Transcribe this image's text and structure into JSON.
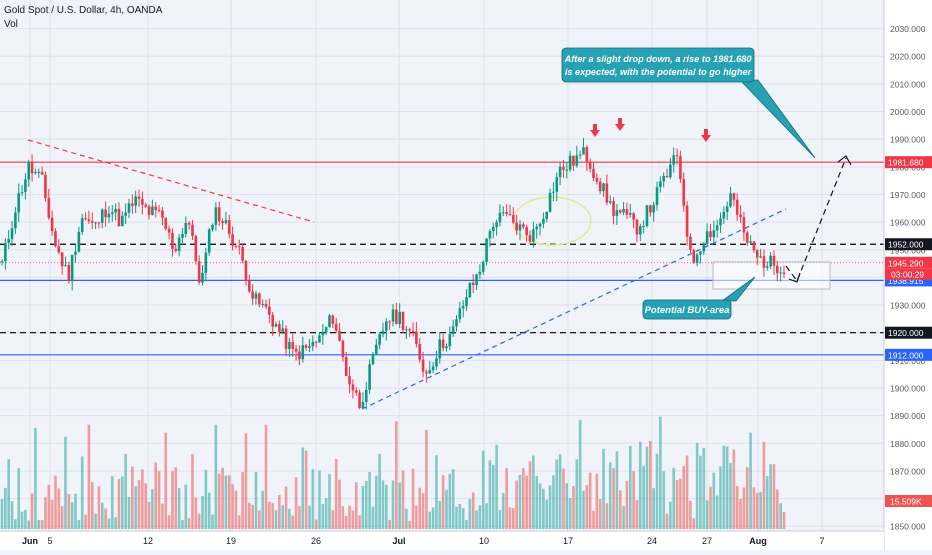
{
  "header": {
    "symbol_title": "Gold Spot / U.S. Dollar, 4h, OANDA",
    "volume_label": "Vol"
  },
  "chart_data": {
    "type": "candlestick",
    "y_axis_ticks": [
      1850,
      1860,
      1870,
      1880,
      1890,
      1900,
      1910,
      1920,
      1930,
      1940,
      1950,
      1960,
      1970,
      1980,
      1990,
      2000,
      2010,
      2020,
      2030
    ],
    "y_axis_tick_labels": [
      "1850.000",
      "1860.000",
      "1870.000",
      "1880.000",
      "1890.000",
      "1900.000",
      "1910.000",
      "1920.000",
      "1930.000",
      "1940.000",
      "1950.000",
      "1960.000",
      "1970.000",
      "1980.000",
      "1990.000",
      "2000.000",
      "2010.000",
      "2020.000",
      "2030.000"
    ],
    "ylim": [
      1849,
      2036
    ],
    "x_axis_labels": [
      "Jun",
      "5",
      "12",
      "19",
      "26",
      "Jul",
      "10",
      "17",
      "24",
      "27",
      "Aug",
      "7"
    ],
    "price_path": [
      [
        "May 29",
        1945
      ],
      [
        "May 31",
        1965
      ],
      [
        "Jun 1",
        1980
      ],
      [
        "Jun 2",
        1975
      ],
      [
        "Jun 3",
        1952
      ],
      [
        "Jun 5",
        1940
      ],
      [
        "Jun 6",
        1962
      ],
      [
        "Jun 8",
        1958
      ],
      [
        "Jun 9",
        1966
      ],
      [
        "Jun 11",
        1960
      ],
      [
        "Jun 12",
        1968
      ],
      [
        "Jun 14",
        1964
      ],
      [
        "Jun 15",
        1962
      ],
      [
        "Jun 16",
        1950
      ],
      [
        "Jun 17",
        1962
      ],
      [
        "Jun 19",
        1937
      ],
      [
        "Jun 20",
        1965
      ],
      [
        "Jun 22",
        1958
      ],
      [
        "Jun 23",
        1948
      ],
      [
        "Jun 24",
        1932
      ],
      [
        "Jun 25",
        1928
      ],
      [
        "Jun 26",
        1920
      ],
      [
        "Jun 27",
        1912
      ],
      [
        "Jun 28",
        1914
      ],
      [
        "Jun 29",
        1918
      ],
      [
        "Jun 30",
        1926
      ],
      [
        "Jul 1",
        1905
      ],
      [
        "Jul 2",
        1894
      ],
      [
        "Jul 3",
        1910
      ],
      [
        "Jul 4",
        1925
      ],
      [
        "Jul 5",
        1926
      ],
      [
        "Jul 6",
        1918
      ],
      [
        "Jul 7",
        1905
      ],
      [
        "Jul 8",
        1915
      ],
      [
        "Jul 9",
        1920
      ],
      [
        "Jul 10",
        1933
      ],
      [
        "Jul 11",
        1942
      ],
      [
        "Jul 12",
        1960
      ],
      [
        "Jul 13",
        1962
      ],
      [
        "Jul 14",
        1958
      ],
      [
        "Jul 15",
        1955
      ],
      [
        "Jul 16",
        1965
      ],
      [
        "Jul 17",
        1978
      ],
      [
        "Jul 18",
        1982
      ],
      [
        "Jul 19",
        1985
      ],
      [
        "Jul 20",
        1975
      ],
      [
        "Jul 21",
        1965
      ],
      [
        "Jul 22",
        1962
      ],
      [
        "Jul 23",
        1958
      ],
      [
        "Jul 24",
        1966
      ],
      [
        "Jul 25",
        1976
      ],
      [
        "Jul 26",
        1984
      ],
      [
        "Jul 27",
        1945
      ],
      [
        "Jul 28",
        1955
      ],
      [
        "Jul 29",
        1959
      ],
      [
        "Jul 30",
        1970
      ],
      [
        "Jul 31",
        1955
      ],
      [
        "Aug 1",
        1947
      ],
      [
        "Aug 2",
        1945
      ],
      [
        "Aug 3",
        1944
      ]
    ],
    "volume_value_label": "15.509K",
    "levels": [
      {
        "value": 1981.68,
        "label": "1981.680",
        "color": "#f23645",
        "style": "solid"
      },
      {
        "value": 1952.0,
        "label": "1952.000",
        "color": "#000000",
        "style": "dashed"
      },
      {
        "value": 1945.29,
        "label": "1945.290",
        "color": "#f23645",
        "style": "dotted"
      },
      {
        "value": 1938.915,
        "label": "1938.915",
        "color": "#2962ff",
        "style": "solid"
      },
      {
        "value": 1920.0,
        "label": "1920.000",
        "color": "#000000",
        "style": "dashed"
      },
      {
        "value": 1912.0,
        "label": "1912.000",
        "color": "#2962ff",
        "style": "solid"
      }
    ],
    "countdown_label": "03:00:29",
    "annotations": {
      "expectation": "After a slight drop down, a rise to 1981.680 is expected, with the potential to go higher",
      "buy_area": "Potential BUY-area"
    },
    "colors": {
      "up": "#089981",
      "down": "#f23645",
      "up_volume": "#26a69a",
      "down_volume": "#ef5350",
      "callout_fill": "#26a2b4",
      "resistance": "#f23645",
      "support": "#2962ff"
    }
  }
}
